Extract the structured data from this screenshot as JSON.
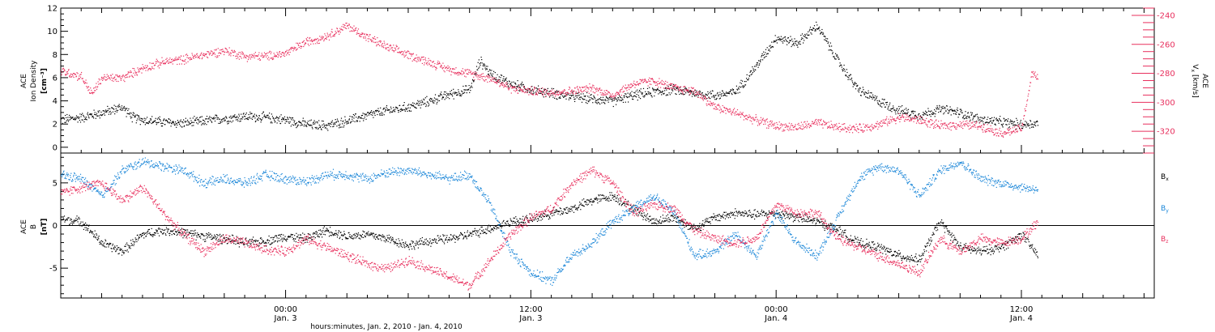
{
  "colors": {
    "black": "#000000",
    "pink": "#e8305e",
    "blue": "#1a86d8"
  },
  "xaxis": {
    "title": "hours:minutes, Jan.  2, 2010 - Jan.  4, 2010",
    "ticks": [
      {
        "time": "00:00",
        "date": "Jan. 3",
        "hours": 24
      },
      {
        "time": "12:00",
        "date": "Jan. 3",
        "hours": 36
      },
      {
        "time": "00:00",
        "date": "Jan. 4",
        "hours": 48
      },
      {
        "time": "12:00",
        "date": "Jan. 4",
        "hours": 60
      }
    ],
    "range_hours": [
      13.0,
      66.5
    ]
  },
  "chart_data": [
    {
      "type": "scatter",
      "panel": "top",
      "ylabel_left": [
        "ACE",
        "Ion Density",
        "[cm⁻³]"
      ],
      "ylabel_right": [
        "ACE",
        "V",
        "x",
        "[km/s]"
      ],
      "ylim_left": [
        -0.5,
        12
      ],
      "yticks_left": [
        0,
        2,
        4,
        6,
        8,
        10,
        12
      ],
      "ylim_right": [
        -335,
        -235
      ],
      "yticks_right": [
        -240,
        -260,
        -280,
        -300,
        -320
      ],
      "series": [
        {
          "axis": "left",
          "color": "#000000",
          "points": [
            [
              13,
              2.4
            ],
            [
              14,
              2.6
            ],
            [
              15,
              3.0
            ],
            [
              16,
              3.5
            ],
            [
              16.5,
              2.6
            ],
            [
              17,
              2.4
            ],
            [
              18,
              2.2
            ],
            [
              19,
              2.1
            ],
            [
              20,
              2.3
            ],
            [
              21,
              2.5
            ],
            [
              22,
              2.7
            ],
            [
              23,
              2.6
            ],
            [
              24,
              2.4
            ],
            [
              25,
              2.0
            ],
            [
              26,
              1.9
            ],
            [
              27,
              2.3
            ],
            [
              28,
              2.8
            ],
            [
              29,
              3.2
            ],
            [
              30,
              3.5
            ],
            [
              31,
              4.0
            ],
            [
              32,
              4.6
            ],
            [
              33,
              5.0
            ],
            [
              33.5,
              7.5
            ],
            [
              34,
              6.4
            ],
            [
              35,
              5.5
            ],
            [
              36,
              5.0
            ],
            [
              37,
              4.7
            ],
            [
              38,
              4.4
            ],
            [
              39,
              4.2
            ],
            [
              40,
              4.0
            ],
            [
              41,
              4.5
            ],
            [
              42,
              4.8
            ],
            [
              43,
              5.0
            ],
            [
              44,
              4.7
            ],
            [
              45,
              4.5
            ],
            [
              46,
              4.8
            ],
            [
              47,
              7.0
            ],
            [
              48,
              9.5
            ],
            [
              49,
              9.0
            ],
            [
              50,
              10.5
            ],
            [
              51,
              7.5
            ],
            [
              52,
              5.0
            ],
            [
              53,
              4.0
            ],
            [
              54,
              3.2
            ],
            [
              55,
              2.8
            ],
            [
              56,
              3.3
            ],
            [
              57,
              3.0
            ],
            [
              58,
              2.4
            ],
            [
              59,
              2.2
            ],
            [
              60,
              2.0
            ],
            [
              60.8,
              2.1
            ]
          ]
        },
        {
          "axis": "right",
          "color": "#e8305e",
          "points": [
            [
              13,
              -278
            ],
            [
              14,
              -282
            ],
            [
              14.5,
              -294
            ],
            [
              15,
              -283
            ],
            [
              16,
              -283
            ],
            [
              17,
              -276
            ],
            [
              18,
              -272
            ],
            [
              19,
              -270
            ],
            [
              20,
              -267
            ],
            [
              21,
              -264
            ],
            [
              22,
              -268
            ],
            [
              23,
              -268
            ],
            [
              24,
              -266
            ],
            [
              25,
              -258
            ],
            [
              26,
              -254
            ],
            [
              27,
              -247
            ],
            [
              28,
              -255
            ],
            [
              29,
              -262
            ],
            [
              30,
              -267
            ],
            [
              31,
              -272
            ],
            [
              32,
              -277
            ],
            [
              33,
              -280
            ],
            [
              34,
              -283
            ],
            [
              35,
              -290
            ],
            [
              36,
              -292
            ],
            [
              37,
              -293
            ],
            [
              38,
              -292
            ],
            [
              39,
              -290
            ],
            [
              40,
              -295
            ],
            [
              41,
              -287
            ],
            [
              42,
              -285
            ],
            [
              43,
              -290
            ],
            [
              44,
              -292
            ],
            [
              45,
              -303
            ],
            [
              46,
              -307
            ],
            [
              47,
              -312
            ],
            [
              48,
              -316
            ],
            [
              49,
              -317
            ],
            [
              50,
              -314
            ],
            [
              51,
              -317
            ],
            [
              52,
              -318
            ],
            [
              53,
              -315
            ],
            [
              54,
              -310
            ],
            [
              55,
              -312
            ],
            [
              56,
              -316
            ],
            [
              57,
              -315
            ],
            [
              58,
              -316
            ],
            [
              59,
              -321
            ],
            [
              60,
              -318
            ],
            [
              60.5,
              -280
            ],
            [
              60.8,
              -283
            ]
          ]
        }
      ]
    },
    {
      "type": "scatter",
      "panel": "bottom",
      "ylabel_left": [
        "ACE",
        "B",
        "[nT]"
      ],
      "ylim": [
        -8.5,
        8.5
      ],
      "yticks": [
        -5,
        0,
        5
      ],
      "zero_line": true,
      "series": [
        {
          "name": "B",
          "sub": "x",
          "color": "#000000",
          "points": [
            [
              13,
              0.8
            ],
            [
              14,
              0.5
            ],
            [
              15,
              -2.0
            ],
            [
              16,
              -3.0
            ],
            [
              17,
              -1.0
            ],
            [
              18,
              -0.5
            ],
            [
              19,
              -0.8
            ],
            [
              20,
              -1.2
            ],
            [
              21,
              -1.5
            ],
            [
              22,
              -2.0
            ],
            [
              23,
              -1.8
            ],
            [
              24,
              -1.2
            ],
            [
              25,
              -1.5
            ],
            [
              26,
              -0.5
            ],
            [
              27,
              -1.2
            ],
            [
              28,
              -1.0
            ],
            [
              29,
              -1.5
            ],
            [
              30,
              -2.3
            ],
            [
              31,
              -1.8
            ],
            [
              32,
              -1.5
            ],
            [
              33,
              -1.0
            ],
            [
              34,
              -0.3
            ],
            [
              35,
              0.5
            ],
            [
              36,
              0.8
            ],
            [
              37,
              1.5
            ],
            [
              38,
              2.0
            ],
            [
              39,
              3.0
            ],
            [
              40,
              3.5
            ],
            [
              41,
              2.0
            ],
            [
              42,
              0.5
            ],
            [
              43,
              1.0
            ],
            [
              44,
              -0.3
            ],
            [
              45,
              1.0
            ],
            [
              46,
              1.5
            ],
            [
              47,
              1.3
            ],
            [
              48,
              1.5
            ],
            [
              49,
              1.0
            ],
            [
              50,
              0.5
            ],
            [
              51,
              -0.5
            ],
            [
              52,
              -2.0
            ],
            [
              53,
              -2.5
            ],
            [
              54,
              -3.5
            ],
            [
              55,
              -4.0
            ],
            [
              56,
              0.5
            ],
            [
              57,
              -2.5
            ],
            [
              58,
              -3.0
            ],
            [
              59,
              -2.5
            ],
            [
              60,
              -1.0
            ],
            [
              60.8,
              -3.5
            ]
          ]
        },
        {
          "name": "B",
          "sub": "y",
          "color": "#1a86d8",
          "points": [
            [
              13,
              6.0
            ],
            [
              14,
              5.5
            ],
            [
              15,
              3.5
            ],
            [
              16,
              6.5
            ],
            [
              17,
              7.5
            ],
            [
              18,
              7.0
            ],
            [
              19,
              6.5
            ],
            [
              20,
              5.0
            ],
            [
              21,
              5.5
            ],
            [
              22,
              5.0
            ],
            [
              23,
              6.0
            ],
            [
              24,
              5.5
            ],
            [
              25,
              5.2
            ],
            [
              26,
              6.0
            ],
            [
              27,
              6.0
            ],
            [
              28,
              5.5
            ],
            [
              29,
              6.3
            ],
            [
              30,
              6.5
            ],
            [
              31,
              6.0
            ],
            [
              32,
              5.5
            ],
            [
              33,
              6.0
            ],
            [
              34,
              2.5
            ],
            [
              35,
              -3.0
            ],
            [
              36,
              -5.5
            ],
            [
              37,
              -6.5
            ],
            [
              38,
              -3.5
            ],
            [
              39,
              -2.0
            ],
            [
              40,
              0.5
            ],
            [
              41,
              2.0
            ],
            [
              42,
              3.5
            ],
            [
              43,
              1.5
            ],
            [
              44,
              -3.5
            ],
            [
              45,
              -3.0
            ],
            [
              46,
              -1.0
            ],
            [
              47,
              -3.5
            ],
            [
              48,
              1.5
            ],
            [
              49,
              -2.0
            ],
            [
              50,
              -3.5
            ],
            [
              51,
              1.0
            ],
            [
              52,
              5.5
            ],
            [
              53,
              7.0
            ],
            [
              54,
              6.5
            ],
            [
              55,
              3.5
            ],
            [
              56,
              6.5
            ],
            [
              57,
              7.5
            ],
            [
              58,
              5.5
            ],
            [
              59,
              5.0
            ],
            [
              60,
              4.5
            ],
            [
              60.8,
              4.3
            ]
          ]
        },
        {
          "name": "B",
          "sub": "z",
          "color": "#e8305e",
          "points": [
            [
              13,
              3.8
            ],
            [
              14,
              4.5
            ],
            [
              15,
              5.0
            ],
            [
              16,
              3.0
            ],
            [
              17,
              4.5
            ],
            [
              18,
              1.5
            ],
            [
              19,
              -1.0
            ],
            [
              20,
              -3.0
            ],
            [
              21,
              -1.5
            ],
            [
              22,
              -2.0
            ],
            [
              23,
              -2.8
            ],
            [
              24,
              -3.0
            ],
            [
              25,
              -1.5
            ],
            [
              26,
              -2.5
            ],
            [
              27,
              -3.5
            ],
            [
              28,
              -4.5
            ],
            [
              29,
              -5.0
            ],
            [
              30,
              -4.0
            ],
            [
              31,
              -5.0
            ],
            [
              32,
              -6.0
            ],
            [
              33,
              -7.0
            ],
            [
              34,
              -4.0
            ],
            [
              35,
              -1.0
            ],
            [
              36,
              1.0
            ],
            [
              37,
              2.0
            ],
            [
              38,
              5.0
            ],
            [
              39,
              6.5
            ],
            [
              40,
              5.0
            ],
            [
              41,
              1.5
            ],
            [
              42,
              2.5
            ],
            [
              43,
              2.0
            ],
            [
              44,
              -0.5
            ],
            [
              45,
              -1.5
            ],
            [
              46,
              -2.0
            ],
            [
              47,
              -1.5
            ],
            [
              48,
              2.5
            ],
            [
              49,
              1.5
            ],
            [
              50,
              1.5
            ],
            [
              51,
              -1.5
            ],
            [
              52,
              -2.5
            ],
            [
              53,
              -3.5
            ],
            [
              54,
              -4.5
            ],
            [
              55,
              -5.5
            ],
            [
              56,
              -1.5
            ],
            [
              57,
              -3.0
            ],
            [
              58,
              -1.5
            ],
            [
              59,
              -2.0
            ],
            [
              60,
              -1.5
            ],
            [
              60.8,
              0.5
            ]
          ]
        }
      ],
      "legend": [
        {
          "label": "B",
          "sub": "x",
          "color": "#000000"
        },
        {
          "label": "B",
          "sub": "y",
          "color": "#1a86d8"
        },
        {
          "label": "B",
          "sub": "z",
          "color": "#e8305e"
        }
      ]
    }
  ]
}
